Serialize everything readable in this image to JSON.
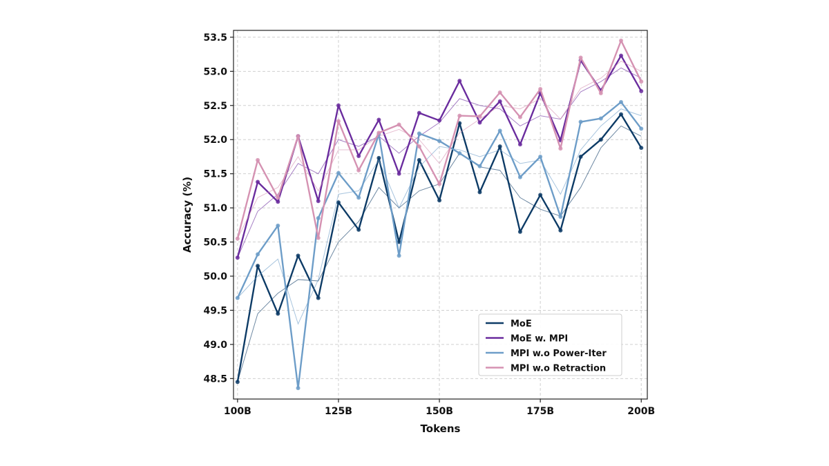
{
  "chart_data": {
    "type": "line",
    "xlabel": "Tokens",
    "ylabel": "Accuracy (%)",
    "x": [
      100,
      105,
      110,
      115,
      120,
      125,
      130,
      135,
      140,
      145,
      150,
      155,
      160,
      165,
      170,
      175,
      180,
      185,
      190,
      195,
      200
    ],
    "x_ticks": [
      {
        "value": 100,
        "label": "100B"
      },
      {
        "value": 125,
        "label": "125B"
      },
      {
        "value": 150,
        "label": "150B"
      },
      {
        "value": 175,
        "label": "175B"
      },
      {
        "value": 200,
        "label": "200B"
      }
    ],
    "xlim": [
      99,
      201.5
    ],
    "ylim": [
      48.2,
      53.6
    ],
    "y_ticks": [
      "48.5",
      "49.0",
      "49.5",
      "50.0",
      "50.5",
      "51.0",
      "51.5",
      "52.0",
      "52.5",
      "53.0",
      "53.5"
    ],
    "grid": true,
    "legend_position": "lower right",
    "series": [
      {
        "name": "MoE",
        "color": "#0d3b66",
        "values": [
          48.45,
          50.15,
          49.45,
          50.3,
          49.68,
          51.08,
          50.68,
          51.73,
          50.5,
          51.7,
          51.11,
          52.24,
          51.23,
          51.9,
          50.65,
          51.19,
          50.67,
          51.75,
          52.0,
          52.37,
          51.88
        ],
        "smoothed": [
          48.45,
          49.45,
          49.75,
          49.95,
          49.93,
          50.5,
          50.8,
          51.3,
          51.0,
          51.25,
          51.35,
          51.8,
          51.6,
          51.55,
          51.15,
          50.98,
          50.88,
          51.3,
          51.88,
          52.2,
          52.05
        ]
      },
      {
        "name": "MoE w. MPI",
        "color": "#6a2c9e",
        "values": [
          50.27,
          51.38,
          51.09,
          52.05,
          51.1,
          52.5,
          51.76,
          52.29,
          51.5,
          52.39,
          52.28,
          52.86,
          52.25,
          52.56,
          51.93,
          52.68,
          51.99,
          53.16,
          52.72,
          53.23,
          52.71
        ],
        "smoothed": [
          50.27,
          50.95,
          51.2,
          51.65,
          51.5,
          52.0,
          51.9,
          52.05,
          51.8,
          52.05,
          52.25,
          52.6,
          52.5,
          52.45,
          52.2,
          52.35,
          52.3,
          52.7,
          52.85,
          53.05,
          52.9
        ]
      },
      {
        "name": "MPI w.o Power-Iter",
        "color": "#6d9dc8",
        "values": [
          49.68,
          50.32,
          50.74,
          48.36,
          50.85,
          51.51,
          51.15,
          52.08,
          50.3,
          52.09,
          51.98,
          51.8,
          51.61,
          52.13,
          51.45,
          51.75,
          50.87,
          52.26,
          52.31,
          52.55,
          52.16
        ],
        "smoothed": [
          49.68,
          50.0,
          50.25,
          49.3,
          49.95,
          51.2,
          51.25,
          51.7,
          51.0,
          51.6,
          51.9,
          51.85,
          51.75,
          51.85,
          51.65,
          51.7,
          51.2,
          51.85,
          52.2,
          52.45,
          52.35
        ]
      },
      {
        "name": "MPI w.o Retraction",
        "color": "#d592b2",
        "values": [
          50.55,
          51.7,
          51.15,
          52.05,
          50.56,
          52.27,
          51.55,
          52.1,
          52.22,
          51.9,
          51.35,
          52.35,
          52.34,
          52.69,
          52.33,
          52.74,
          51.87,
          53.2,
          52.68,
          53.45,
          52.85
        ],
        "smoothed": [
          50.55,
          51.15,
          51.3,
          51.75,
          51.25,
          51.85,
          51.85,
          52.05,
          52.15,
          52.0,
          51.65,
          52.1,
          52.3,
          52.5,
          52.45,
          52.6,
          52.3,
          52.75,
          52.9,
          53.15,
          53.0
        ]
      }
    ]
  }
}
